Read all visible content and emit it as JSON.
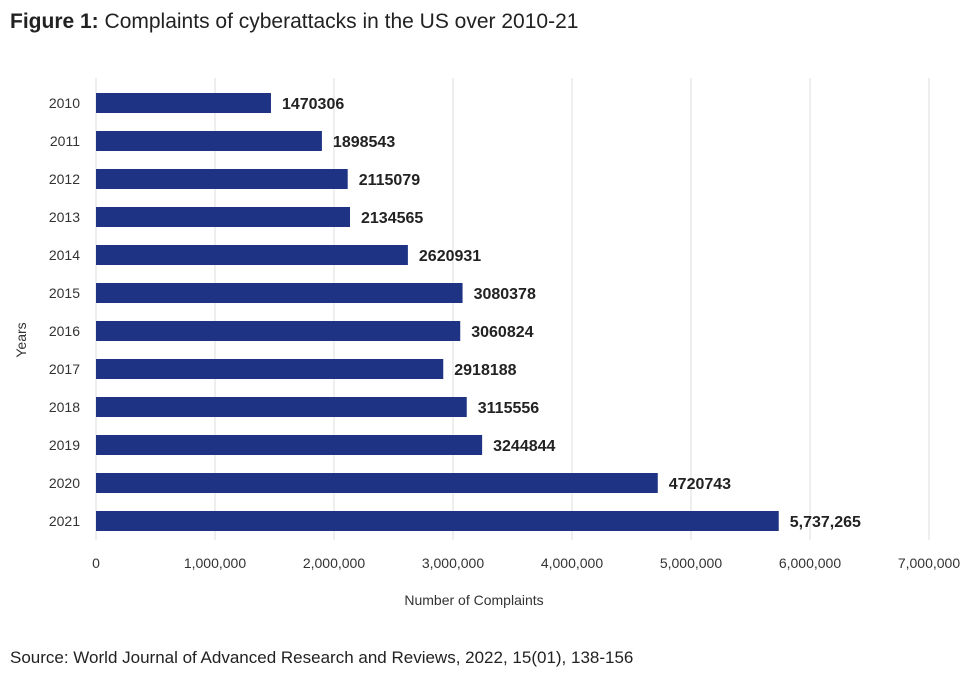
{
  "header": {
    "title_lead": "Figure 1:",
    "title_rest": "Complaints of cyberattacks in the US over 2010-21"
  },
  "footer": {
    "source": "Source: World Journal of Advanced Research and Reviews, 2022, 15(01), 138-156"
  },
  "chart_data": {
    "type": "bar",
    "orientation": "horizontal",
    "categories": [
      "2010",
      "2011",
      "2012",
      "2013",
      "2014",
      "2015",
      "2016",
      "2017",
      "2018",
      "2019",
      "2020",
      "2021"
    ],
    "values": [
      1470306,
      1898543,
      2115079,
      2134565,
      2620931,
      3080378,
      3060824,
      2918188,
      3115556,
      3244844,
      4720743,
      5737265
    ],
    "data_labels": [
      "1470306",
      "1898543",
      "2115079",
      "2134565",
      "2620931",
      "3080378",
      "3060824",
      "2918188",
      "3115556",
      "3244844",
      "4720743",
      "5,737,265"
    ],
    "xlabel": "Number of Complaints",
    "ylabel": "Years",
    "xlim": [
      0,
      7000000
    ],
    "xticks": [
      0,
      1000000,
      2000000,
      3000000,
      4000000,
      5000000,
      6000000,
      7000000
    ],
    "xtick_labels": [
      "0",
      "1,000,000",
      "2,000,000",
      "3,000,000",
      "4,000,000",
      "5,000,000",
      "6,000,000",
      "7,000,000"
    ],
    "grid": "vertical",
    "bar_color": "#1f3385"
  }
}
